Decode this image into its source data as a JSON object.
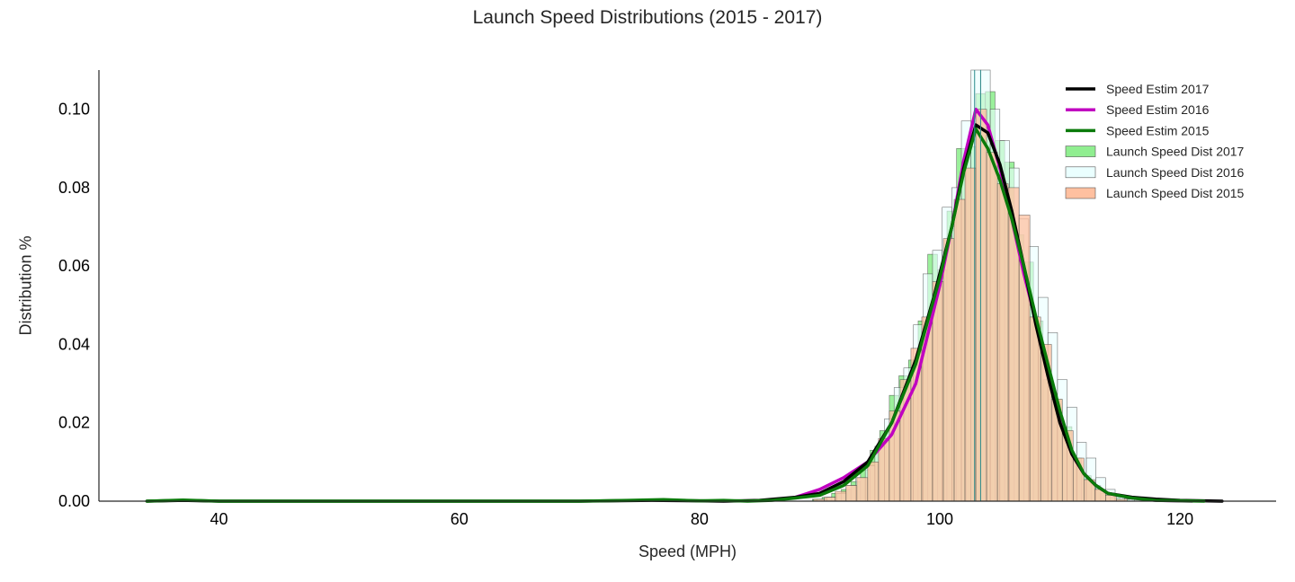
{
  "chart_data": {
    "type": "histogram+kde",
    "title": "Launch Speed Distributions (2015 - 2017)",
    "xlabel": "Speed (MPH)",
    "ylabel": "Distribution %",
    "xlim": [
      30,
      128
    ],
    "ylim": [
      0,
      0.11
    ],
    "xticks": [
      40,
      60,
      80,
      100,
      120
    ],
    "yticks": [
      0.0,
      0.02,
      0.04,
      0.06,
      0.08,
      0.1
    ],
    "xtick_labels": [
      "40",
      "60",
      "80",
      "100",
      "120"
    ],
    "ytick_labels": [
      "0.00",
      "0.02",
      "0.04",
      "0.06",
      "0.08",
      "0.10"
    ],
    "grid": false,
    "legend_position": "top-right",
    "kde_series": [
      {
        "name": "Speed Estim 2017",
        "color": "#000000",
        "x": [
          34,
          37,
          40,
          50,
          60,
          70,
          76,
          80,
          82,
          85,
          88,
          90,
          92,
          94,
          96,
          98,
          99.5,
          101,
          102,
          103,
          104,
          105,
          106,
          107,
          108,
          109,
          110,
          111,
          112,
          113,
          114,
          115,
          116,
          118,
          120,
          123.5
        ],
        "y": [
          0.0,
          0.0002,
          0.0,
          0.0,
          0.0,
          0.0,
          0.0002,
          0.0001,
          0.0,
          0.0002,
          0.001,
          0.002,
          0.005,
          0.01,
          0.02,
          0.036,
          0.052,
          0.07,
          0.085,
          0.096,
          0.094,
          0.086,
          0.074,
          0.06,
          0.045,
          0.032,
          0.02,
          0.012,
          0.007,
          0.004,
          0.002,
          0.0015,
          0.001,
          0.0005,
          0.0002,
          0.0
        ]
      },
      {
        "name": "Speed Estim 2016",
        "color": "#c000c0",
        "x": [
          88,
          90,
          92,
          94,
          96,
          98,
          100,
          101,
          102,
          103,
          104,
          105,
          106,
          107,
          108,
          109,
          110,
          111,
          112,
          113,
          114,
          116,
          118,
          121
        ],
        "y": [
          0.001,
          0.003,
          0.006,
          0.01,
          0.017,
          0.03,
          0.055,
          0.07,
          0.087,
          0.1,
          0.096,
          0.085,
          0.072,
          0.058,
          0.046,
          0.034,
          0.022,
          0.012,
          0.007,
          0.004,
          0.002,
          0.0008,
          0.0002,
          0.0
        ]
      },
      {
        "name": "Speed Estim 2015",
        "color": "#0a7a0a",
        "x": [
          34,
          37,
          40,
          50,
          60,
          70,
          74,
          77,
          80,
          82,
          84,
          86,
          88,
          90,
          92,
          94,
          96,
          98,
          100,
          101,
          102,
          103,
          104,
          105,
          106,
          107,
          108,
          109,
          110,
          111,
          112,
          113,
          114,
          116,
          118,
          122
        ],
        "y": [
          0.0,
          0.0003,
          0.0,
          0.0,
          0.0,
          0.0,
          0.0002,
          0.0004,
          0.0001,
          0.0002,
          0.0,
          0.0002,
          0.0008,
          0.0015,
          0.004,
          0.009,
          0.02,
          0.035,
          0.057,
          0.07,
          0.084,
          0.095,
          0.09,
          0.082,
          0.072,
          0.06,
          0.047,
          0.035,
          0.023,
          0.013,
          0.007,
          0.004,
          0.002,
          0.0008,
          0.0002,
          0.0
        ]
      }
    ],
    "hist_series": [
      {
        "name": "Launch Speed Dist 2017",
        "fill": "#90ee90",
        "opacity": 0.9,
        "stroke": "#3a3a3a",
        "bin_width": 0.8,
        "bins": [
          [
            89.4,
            0.0005
          ],
          [
            90.2,
            0.001
          ],
          [
            91.0,
            0.002
          ],
          [
            91.8,
            0.003
          ],
          [
            92.6,
            0.005
          ],
          [
            93.4,
            0.008
          ],
          [
            94.2,
            0.013
          ],
          [
            95.0,
            0.018
          ],
          [
            95.8,
            0.027
          ],
          [
            96.6,
            0.032
          ],
          [
            97.4,
            0.036
          ],
          [
            98.2,
            0.046
          ],
          [
            99.0,
            0.063
          ],
          [
            99.8,
            0.059
          ],
          [
            100.6,
            0.074
          ],
          [
            101.4,
            0.09
          ],
          [
            102.2,
            0.0905
          ],
          [
            103.0,
            0.104
          ],
          [
            103.8,
            0.1045
          ],
          [
            104.6,
            0.092
          ],
          [
            105.4,
            0.0865
          ],
          [
            106.2,
            0.068
          ],
          [
            107.0,
            0.061
          ],
          [
            107.8,
            0.046
          ],
          [
            108.6,
            0.031
          ],
          [
            109.4,
            0.026
          ],
          [
            110.2,
            0.019
          ],
          [
            111.0,
            0.011
          ],
          [
            111.8,
            0.0065
          ],
          [
            112.6,
            0.004
          ],
          [
            113.4,
            0.002
          ],
          [
            114.2,
            0.001
          ],
          [
            115.0,
            0.0005
          ]
        ]
      },
      {
        "name": "Launch Speed Dist 2016",
        "fill": "#eaffff",
        "opacity": 0.6,
        "stroke": "#3a3a3a",
        "bin_width": 0.8,
        "bins": [
          [
            89.8,
            0.0005
          ],
          [
            90.6,
            0.001
          ],
          [
            91.4,
            0.002
          ],
          [
            92.2,
            0.004
          ],
          [
            93.0,
            0.006
          ],
          [
            93.8,
            0.009
          ],
          [
            94.6,
            0.014
          ],
          [
            95.4,
            0.021
          ],
          [
            96.2,
            0.029
          ],
          [
            97.0,
            0.034
          ],
          [
            97.8,
            0.045
          ],
          [
            98.6,
            0.058
          ],
          [
            99.4,
            0.064
          ],
          [
            100.2,
            0.075
          ],
          [
            101.0,
            0.08
          ],
          [
            101.8,
            0.097
          ],
          [
            102.6,
            0.11
          ],
          [
            103.4,
            0.11
          ],
          [
            104.2,
            0.1
          ],
          [
            105.0,
            0.092
          ],
          [
            105.8,
            0.085
          ],
          [
            106.6,
            0.072
          ],
          [
            107.4,
            0.065
          ],
          [
            108.2,
            0.052
          ],
          [
            109.0,
            0.043
          ],
          [
            109.8,
            0.031
          ],
          [
            110.6,
            0.024
          ],
          [
            111.4,
            0.015
          ],
          [
            112.2,
            0.011
          ],
          [
            113.0,
            0.006
          ],
          [
            113.8,
            0.003
          ],
          [
            114.6,
            0.0015
          ],
          [
            115.4,
            0.0005
          ]
        ]
      },
      {
        "name": "Launch Speed Dist 2015",
        "fill": "#ffc0a0",
        "opacity": 0.75,
        "stroke": "#3a3a3a",
        "bin_width": 0.9,
        "bins": [
          [
            89.5,
            0.0005
          ],
          [
            90.4,
            0.001
          ],
          [
            91.3,
            0.0025
          ],
          [
            92.2,
            0.004
          ],
          [
            93.1,
            0.006
          ],
          [
            94.0,
            0.01
          ],
          [
            94.9,
            0.016
          ],
          [
            95.8,
            0.023
          ],
          [
            96.7,
            0.031
          ],
          [
            97.6,
            0.039
          ],
          [
            98.5,
            0.047
          ],
          [
            99.4,
            0.056
          ],
          [
            100.3,
            0.067
          ],
          [
            101.2,
            0.077
          ],
          [
            102.1,
            0.085
          ],
          [
            103.0,
            0.1
          ],
          [
            103.9,
            0.089
          ],
          [
            104.8,
            0.081
          ],
          [
            105.7,
            0.08
          ],
          [
            106.6,
            0.073
          ],
          [
            107.5,
            0.047
          ],
          [
            108.4,
            0.04
          ],
          [
            109.3,
            0.026
          ],
          [
            110.2,
            0.018
          ],
          [
            111.1,
            0.011
          ],
          [
            112.0,
            0.0055
          ],
          [
            112.9,
            0.003
          ],
          [
            113.8,
            0.0015
          ],
          [
            114.7,
            0.0005
          ]
        ]
      }
    ],
    "legend": [
      {
        "label": "Speed Estim 2017",
        "kind": "line",
        "color": "#000000"
      },
      {
        "label": "Speed Estim 2016",
        "kind": "line",
        "color": "#c000c0"
      },
      {
        "label": "Speed Estim 2015",
        "kind": "line",
        "color": "#0a7a0a"
      },
      {
        "label": "Launch Speed Dist 2017",
        "kind": "patch",
        "color": "#90ee90"
      },
      {
        "label": "Launch Speed Dist 2016",
        "kind": "patch",
        "color": "#eaffff"
      },
      {
        "label": "Launch Speed Dist 2015",
        "kind": "patch",
        "color": "#ffc0a0"
      }
    ],
    "mean_lines": [
      102.9,
      103.4
    ],
    "mean_line_color": "#2a8a8a"
  }
}
